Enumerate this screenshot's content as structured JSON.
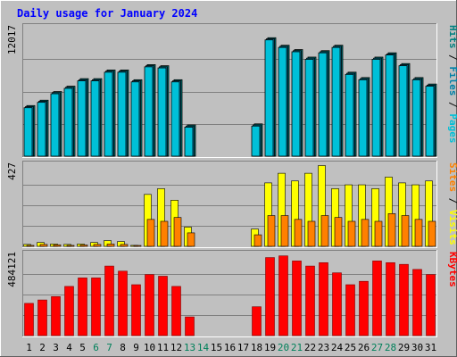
{
  "chart_data": {
    "type": "bar",
    "title": "Daily usage for January 2024",
    "days": [
      "1",
      "2",
      "3",
      "4",
      "5",
      "6",
      "7",
      "8",
      "9",
      "10",
      "11",
      "12",
      "13",
      "14",
      "15",
      "16",
      "17",
      "18",
      "19",
      "20",
      "21",
      "22",
      "23",
      "24",
      "25",
      "26",
      "27",
      "28",
      "29",
      "30",
      "31"
    ],
    "weekend_days": [
      "6",
      "7",
      "13",
      "14",
      "20",
      "21",
      "27",
      "28"
    ],
    "panels": [
      {
        "id": "pages-files",
        "max_label": "12017",
        "ymax": 12017,
        "series": [
          {
            "name": "Pages",
            "color": "#00c0d8",
            "values": [
              4500,
              5000,
              5800,
              6300,
              7000,
              7000,
              7800,
              7800,
              6900,
              8300,
              8200,
              6900,
              2700,
              0,
              0,
              0,
              0,
              2800,
              10800,
              10100,
              9700,
              9000,
              9600,
              10100,
              7600,
              7100,
              9000,
              9400,
              8400,
              7100,
              6500
            ]
          },
          {
            "name": "Files",
            "color": "#0080a8",
            "values": [
              4600,
              5100,
              5900,
              6400,
              7100,
              7100,
              7900,
              7900,
              7000,
              8400,
              8300,
              7000,
              2800,
              0,
              0,
              0,
              0,
              2900,
              10900,
              10200,
              9800,
              9100,
              9700,
              10200,
              7700,
              7200,
              9100,
              9500,
              8500,
              7200,
              6600
            ]
          },
          {
            "name": "Hits",
            "color": "#008080",
            "values": [
              4700,
              5200,
              6000,
              6500,
              7200,
              7200,
              8000,
              8000,
              7100,
              8500,
              8400,
              7100,
              2900,
              0,
              0,
              0,
              0,
              3000,
              11000,
              10300,
              9900,
              9200,
              9800,
              10300,
              7800,
              7300,
              9200,
              9600,
              8600,
              7300,
              6700
            ]
          }
        ]
      },
      {
        "id": "visits-sites",
        "max_label": "427",
        "ymax": 427,
        "series": [
          {
            "name": "Visits",
            "color": "#ffff00",
            "values": [
              10,
              20,
              12,
              10,
              12,
              20,
              30,
              25,
              5,
              270,
              300,
              240,
              100,
              0,
              0,
              0,
              0,
              90,
              330,
              380,
              340,
              380,
              420,
              300,
              320,
              320,
              300,
              360,
              330,
              320,
              340
            ]
          },
          {
            "name": "Sites",
            "color": "#ff8000",
            "values": [
              5,
              10,
              8,
              5,
              7,
              10,
              12,
              10,
              3,
              140,
              130,
              150,
              70,
              0,
              0,
              0,
              0,
              60,
              160,
              160,
              140,
              130,
              160,
              150,
              130,
              140,
              130,
              170,
              160,
              140,
              130
            ]
          }
        ]
      },
      {
        "id": "kbytes",
        "max_label": "484121",
        "ymax": 484121,
        "series": [
          {
            "name": "KBytes",
            "color": "#ff0000",
            "values": [
              190000,
              210000,
              230000,
              290000,
              340000,
              340000,
              410000,
              380000,
              300000,
              360000,
              350000,
              290000,
              110000,
              0,
              0,
              0,
              0,
              170000,
              460000,
              470000,
              440000,
              410000,
              430000,
              370000,
              300000,
              320000,
              440000,
              430000,
              420000,
              390000,
              360000
            ]
          }
        ]
      }
    ],
    "legend_colors": {
      "separator": "#000000"
    }
  }
}
